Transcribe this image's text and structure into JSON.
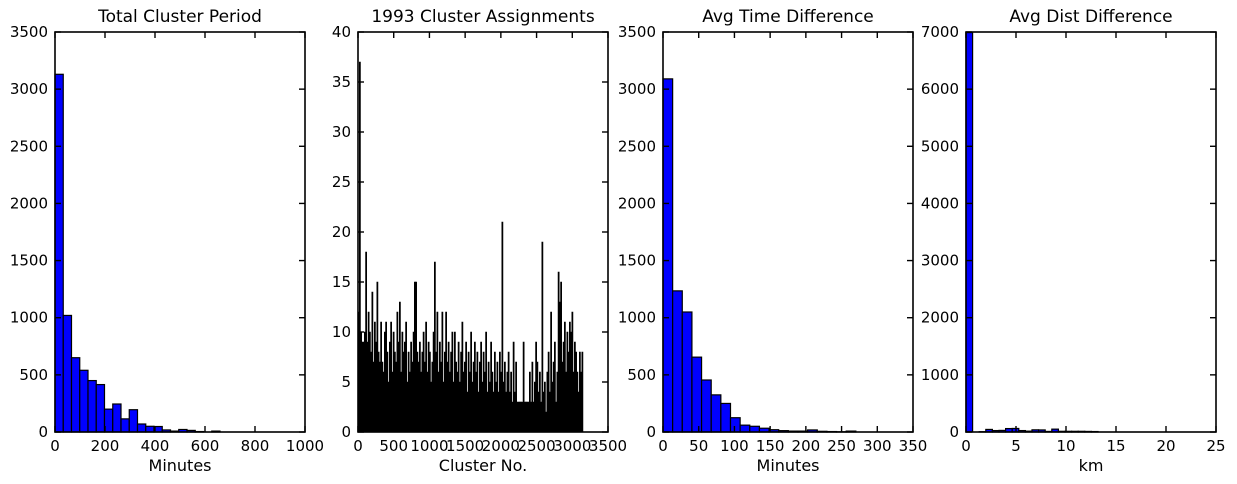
{
  "figure": {
    "background": "#ffffff",
    "frame_color": "#000000",
    "text_color": "#000000"
  },
  "chart_data": [
    {
      "type": "bar",
      "title": "Total Cluster Period",
      "xlabel": "Minutes",
      "ylabel": "",
      "bar_color": "#0000ff",
      "edge_color": "#000000",
      "xlim": [
        0,
        1000
      ],
      "ylim": [
        0,
        3500
      ],
      "xticks": [
        0,
        200,
        400,
        600,
        800,
        1000
      ],
      "yticks": [
        0,
        500,
        1000,
        1500,
        2000,
        2500,
        3000,
        3500
      ],
      "grid": false,
      "legend": null,
      "bin_start": 0,
      "bin_width": 33,
      "values": [
        3130,
        1020,
        650,
        540,
        450,
        415,
        200,
        245,
        115,
        195,
        70,
        50,
        48,
        18,
        8,
        22,
        14,
        4,
        0,
        8
      ]
    },
    {
      "type": "bar",
      "title": "1993 Cluster Assignments",
      "xlabel": "Cluster No.",
      "ylabel": "",
      "bar_color": "#000000",
      "edge_color": "#000000",
      "xlim": [
        0,
        3500
      ],
      "ylim": [
        0,
        40
      ],
      "xticks": [
        0,
        500,
        1000,
        1500,
        2000,
        2500,
        3000,
        3500
      ],
      "yticks": [
        0,
        5,
        10,
        15,
        20,
        25,
        30,
        35,
        40
      ],
      "grid": false,
      "legend": null,
      "bin_start": 0,
      "bin_width": 17.5,
      "values": [
        12,
        37,
        10,
        9,
        9,
        10,
        18,
        9,
        12,
        10,
        8,
        14,
        7,
        11,
        9,
        15,
        8,
        7,
        11,
        7,
        6,
        10,
        11,
        8,
        5,
        9,
        11,
        6,
        10,
        8,
        7,
        12,
        9,
        13,
        6,
        10,
        8,
        9,
        11,
        5,
        8,
        6,
        9,
        7,
        10,
        15,
        15,
        8,
        7,
        9,
        6,
        8,
        10,
        7,
        11,
        6,
        9,
        8,
        5,
        7,
        10,
        17,
        8,
        12,
        6,
        9,
        7,
        12,
        5,
        8,
        12,
        7,
        9,
        6,
        8,
        10,
        5,
        10,
        7,
        6,
        9,
        5,
        8,
        11,
        6,
        7,
        9,
        4,
        8,
        6,
        10,
        5,
        7,
        9,
        6,
        8,
        4,
        7,
        9,
        5,
        8,
        6,
        10,
        4,
        7,
        5,
        9,
        6,
        4,
        8,
        5,
        7,
        4,
        8,
        6,
        21,
        5,
        7,
        4,
        6,
        8,
        4,
        6,
        3,
        9,
        4,
        7,
        3,
        3,
        3,
        3,
        3,
        9,
        3,
        3,
        3,
        3,
        6,
        3,
        7,
        3,
        5,
        9,
        7,
        4,
        6,
        3,
        19,
        4,
        5,
        2,
        6,
        8,
        4,
        12,
        5,
        7,
        9,
        3,
        6,
        16,
        13,
        15,
        7,
        9,
        11,
        6,
        10,
        8,
        11,
        10,
        12,
        6,
        9,
        8,
        6,
        4,
        8,
        6,
        8
      ]
    },
    {
      "type": "bar",
      "title": "Avg Time Difference",
      "xlabel": "Minutes",
      "ylabel": "",
      "bar_color": "#0000ff",
      "edge_color": "#000000",
      "xlim": [
        0,
        350
      ],
      "ylim": [
        0,
        3500
      ],
      "xticks": [
        0,
        50,
        100,
        150,
        200,
        250,
        300,
        350
      ],
      "yticks": [
        0,
        500,
        1000,
        1500,
        2000,
        2500,
        3000,
        3500
      ],
      "grid": false,
      "legend": null,
      "bin_start": 0,
      "bin_width": 13.5,
      "values": [
        3090,
        1235,
        1050,
        655,
        455,
        325,
        250,
        125,
        60,
        50,
        33,
        20,
        12,
        8,
        8,
        18,
        6,
        4,
        2,
        8
      ]
    },
    {
      "type": "bar",
      "title": "Avg Dist Difference",
      "xlabel": "km",
      "ylabel": "",
      "bar_color": "#0000ff",
      "edge_color": "#000000",
      "xlim": [
        0,
        25
      ],
      "ylim": [
        0,
        7000
      ],
      "xticks": [
        0,
        5,
        10,
        15,
        20,
        25
      ],
      "yticks": [
        0,
        1000,
        2000,
        3000,
        4000,
        5000,
        6000,
        7000
      ],
      "grid": false,
      "legend": null,
      "bin_start": 0,
      "bin_width": 0.66,
      "values": [
        6990,
        0,
        5,
        45,
        25,
        28,
        60,
        62,
        25,
        15,
        38,
        36,
        10,
        50,
        12,
        12,
        12,
        12,
        10,
        8
      ]
    }
  ]
}
